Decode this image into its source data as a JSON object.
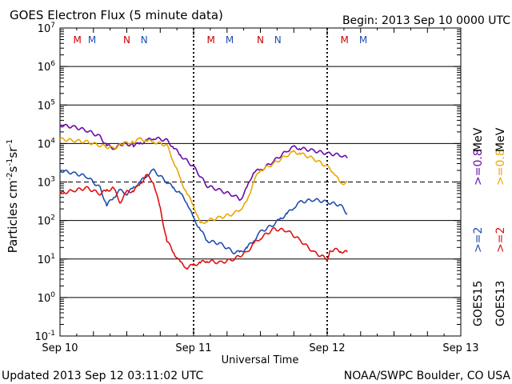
{
  "chart_data": {
    "type": "line",
    "title": "GOES Electron Flux (5 minute data)",
    "begin_label": "Begin: 2013 Sep 10 0000 UTC",
    "xlabel": "Universal Time",
    "ylabel_main": "Particles cm",
    "ylabel_parts": [
      "Particles cm",
      "-2",
      "s",
      "-1",
      "sr",
      "-1"
    ],
    "updated": "Updated 2013 Sep 12 03:11:02 UTC",
    "credit": "NOAA/SWPC Boulder, CO USA",
    "x_unit": "days since 2013 Sep 10 0000 UTC",
    "xlim": [
      0,
      3
    ],
    "ylog_range": [
      -1,
      7
    ],
    "x_ticks": [
      {
        "pos": 0,
        "label": "Sep 10"
      },
      {
        "pos": 1,
        "label": "Sep 11"
      },
      {
        "pos": 2,
        "label": "Sep 12"
      },
      {
        "pos": 3,
        "label": "Sep 13"
      }
    ],
    "y_ticks": [
      {
        "base": "10",
        "exp": "7"
      },
      {
        "base": "10",
        "exp": "6"
      },
      {
        "base": "10",
        "exp": "5"
      },
      {
        "base": "10",
        "exp": "4"
      },
      {
        "base": "10",
        "exp": "3"
      },
      {
        "base": "10",
        "exp": "2"
      },
      {
        "base": "10",
        "exp": "1"
      },
      {
        "base": "10",
        "exp": "0"
      },
      {
        "base": "10",
        "exp": "-1"
      }
    ],
    "threshold_value": 1000,
    "gridlines_at": [
      1,
      10,
      100,
      10000,
      100000,
      1000000
    ],
    "markers": [
      {
        "label": "M",
        "x": 0.13,
        "color": "#cc0000"
      },
      {
        "label": "M",
        "x": 0.24,
        "color": "#1f4fb0"
      },
      {
        "label": "N",
        "x": 0.5,
        "color": "#cc0000"
      },
      {
        "label": "N",
        "x": 0.63,
        "color": "#1f4fb0"
      },
      {
        "label": "M",
        "x": 1.13,
        "color": "#cc0000"
      },
      {
        "label": "M",
        "x": 1.27,
        "color": "#1f4fb0"
      },
      {
        "label": "N",
        "x": 1.5,
        "color": "#cc0000"
      },
      {
        "label": "N",
        "x": 1.63,
        "color": "#1f4fb0"
      },
      {
        "label": "M",
        "x": 2.13,
        "color": "#cc0000"
      },
      {
        "label": "M",
        "x": 2.27,
        "color": "#1f4fb0"
      }
    ],
    "legend": {
      "goes15": "GOES15",
      "goes13": "GOES13",
      "ge2": ">=2",
      "ge08": ">=0.8",
      "mev": "MeV"
    },
    "series": [
      {
        "name": "GOES15 >=0.8 MeV",
        "color": "#6a0da6",
        "x": [
          0,
          0.1,
          0.2,
          0.3,
          0.35,
          0.4,
          0.48,
          0.55,
          0.6,
          0.65,
          0.7,
          0.8,
          0.85,
          0.9,
          1.0,
          1.1,
          1.2,
          1.3,
          1.35,
          1.4,
          1.45,
          1.5,
          1.6,
          1.7,
          1.75,
          1.8,
          1.9,
          2.0,
          2.1,
          2.15
        ],
        "values": [
          30000,
          27000,
          22000,
          15000,
          9000,
          7500,
          10000,
          9000,
          10000,
          12000,
          14000,
          12000,
          8000,
          5000,
          2500,
          800,
          600,
          450,
          350,
          700,
          1900,
          2000,
          3500,
          6500,
          8000,
          7500,
          6500,
          5500,
          5000,
          4200
        ]
      },
      {
        "name": "GOES13 >=0.8 MeV",
        "color": "#e8a800",
        "x": [
          0,
          0.1,
          0.2,
          0.3,
          0.4,
          0.48,
          0.55,
          0.6,
          0.65,
          0.7,
          0.8,
          0.85,
          0.9,
          0.95,
          1.0,
          1.05,
          1.1,
          1.2,
          1.3,
          1.35,
          1.4,
          1.45,
          1.5,
          1.6,
          1.7,
          1.75,
          1.8,
          1.9,
          2.0,
          2.05,
          2.1,
          2.15
        ],
        "values": [
          13000,
          12000,
          11000,
          9000,
          7500,
          10000,
          11000,
          13000,
          12000,
          11000,
          9000,
          3500,
          1200,
          500,
          250,
          80,
          100,
          120,
          150,
          200,
          300,
          1100,
          2000,
          3000,
          5000,
          6000,
          5500,
          4000,
          2500,
          1800,
          900,
          1000
        ]
      },
      {
        "name": "GOES15 >=2 MeV",
        "color": "#1f4fb0",
        "x": [
          0,
          0.1,
          0.2,
          0.3,
          0.35,
          0.4,
          0.45,
          0.5,
          0.55,
          0.6,
          0.65,
          0.7,
          0.8,
          0.85,
          0.9,
          0.95,
          1.0,
          1.05,
          1.1,
          1.2,
          1.3,
          1.35,
          1.4,
          1.45,
          1.5,
          1.6,
          1.65,
          1.7,
          1.75,
          1.8,
          1.9,
          2.0,
          2.1,
          2.15
        ],
        "values": [
          2000,
          1700,
          1400,
          700,
          250,
          400,
          600,
          500,
          700,
          1000,
          1500,
          2000,
          1000,
          700,
          500,
          300,
          110,
          60,
          30,
          25,
          15,
          15,
          20,
          30,
          50,
          80,
          110,
          150,
          220,
          300,
          350,
          300,
          250,
          150
        ]
      },
      {
        "name": "GOES13 >=2 MeV",
        "color": "#e01010",
        "x": [
          0,
          0.1,
          0.2,
          0.3,
          0.35,
          0.4,
          0.45,
          0.5,
          0.55,
          0.6,
          0.65,
          0.7,
          0.75,
          0.8,
          0.85,
          0.9,
          0.95,
          1.0,
          1.05,
          1.1,
          1.2,
          1.3,
          1.4,
          1.45,
          1.5,
          1.6,
          1.7,
          1.8,
          1.9,
          2.0,
          2.02,
          2.05,
          2.1,
          2.15
        ],
        "values": [
          500,
          600,
          700,
          500,
          600,
          700,
          300,
          550,
          600,
          900,
          1500,
          1000,
          200,
          30,
          15,
          8,
          6,
          7,
          8,
          9,
          8,
          10,
          15,
          25,
          35,
          60,
          55,
          30,
          15,
          10,
          15,
          18,
          16,
          15
        ]
      }
    ]
  }
}
